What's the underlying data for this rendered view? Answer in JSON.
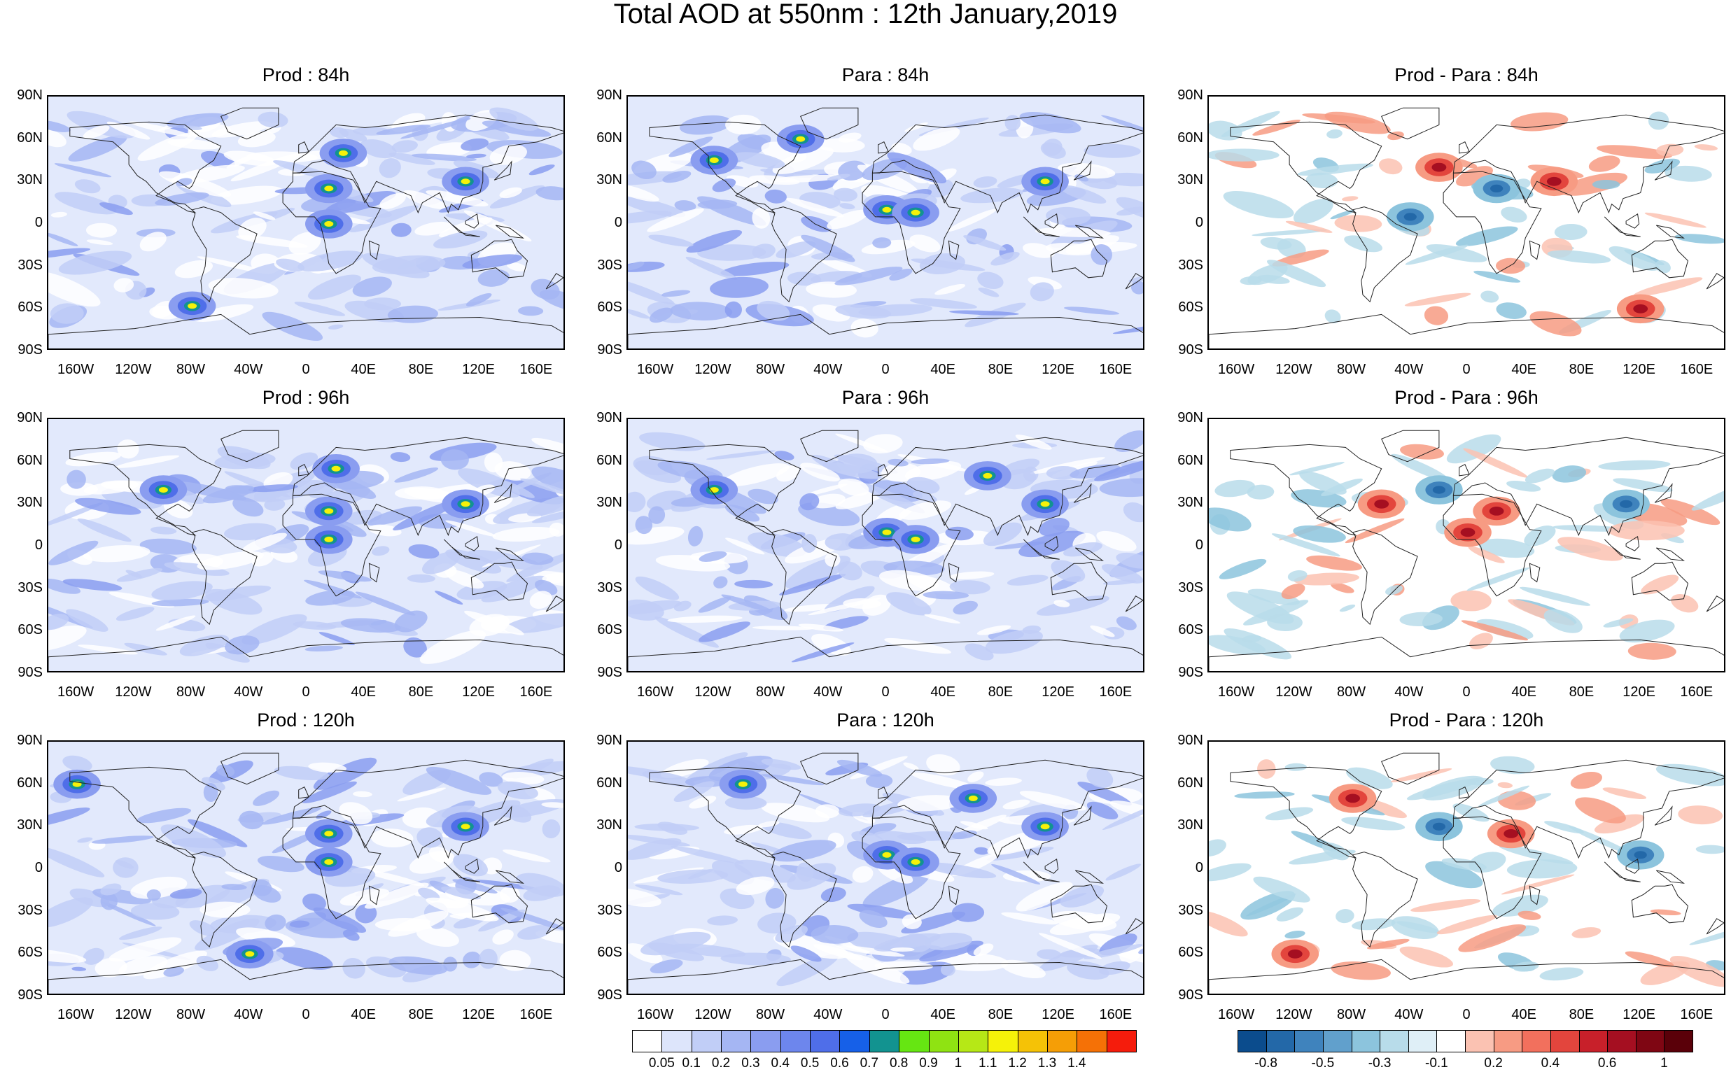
{
  "title": "Total AOD at 550nm : 12th January,2019",
  "panels": [
    {
      "title": "Prod : 84h",
      "kind": "aod",
      "seed": 11,
      "hot": [
        [
          15,
          25
        ],
        [
          15,
          0
        ],
        [
          110,
          30
        ],
        [
          -80,
          -58
        ],
        [
          25,
          50
        ]
      ]
    },
    {
      "title": "Para : 84h",
      "kind": "aod",
      "seed": 23,
      "hot": [
        [
          0,
          10
        ],
        [
          20,
          8
        ],
        [
          110,
          30
        ],
        [
          -60,
          60
        ],
        [
          -120,
          45
        ]
      ]
    },
    {
      "title": "Prod - Para : 84h",
      "kind": "diff",
      "seed": 37,
      "hot": [
        [
          -20,
          40
        ],
        [
          20,
          25
        ],
        [
          60,
          30
        ],
        [
          -40,
          5
        ],
        [
          120,
          -60
        ]
      ]
    },
    {
      "title": "Prod : 96h",
      "kind": "aod",
      "seed": 41,
      "hot": [
        [
          15,
          25
        ],
        [
          15,
          5
        ],
        [
          110,
          30
        ],
        [
          -100,
          40
        ],
        [
          20,
          55
        ]
      ]
    },
    {
      "title": "Para : 96h",
      "kind": "aod",
      "seed": 53,
      "hot": [
        [
          0,
          10
        ],
        [
          20,
          5
        ],
        [
          110,
          30
        ],
        [
          70,
          50
        ],
        [
          -120,
          40
        ]
      ]
    },
    {
      "title": "Prod - Para : 96h",
      "kind": "diff",
      "seed": 67,
      "hot": [
        [
          20,
          25
        ],
        [
          -20,
          40
        ],
        [
          -60,
          30
        ],
        [
          110,
          30
        ],
        [
          0,
          10
        ]
      ]
    },
    {
      "title": "Prod : 120h",
      "kind": "aod",
      "seed": 71,
      "hot": [
        [
          15,
          25
        ],
        [
          15,
          5
        ],
        [
          110,
          30
        ],
        [
          -40,
          -60
        ],
        [
          -160,
          60
        ]
      ]
    },
    {
      "title": "Para : 120h",
      "kind": "aod",
      "seed": 83,
      "hot": [
        [
          0,
          10
        ],
        [
          20,
          5
        ],
        [
          110,
          30
        ],
        [
          60,
          50
        ],
        [
          -100,
          60
        ]
      ]
    },
    {
      "title": "Prod - Para : 120h",
      "kind": "diff",
      "seed": 97,
      "hot": [
        [
          30,
          25
        ],
        [
          -20,
          30
        ],
        [
          -80,
          50
        ],
        [
          120,
          10
        ],
        [
          -120,
          -60
        ]
      ]
    }
  ],
  "lat_labels": [
    "90N",
    "60N",
    "30N",
    "0",
    "30S",
    "60S",
    "90S"
  ],
  "lon_labels": [
    "160W",
    "120W",
    "80W",
    "40W",
    "0",
    "40E",
    "80E",
    "120E",
    "160E"
  ],
  "aod_colorbar": {
    "colors": [
      "#ffffff",
      "#dde5fb",
      "#c1cef7",
      "#a5b6f3",
      "#8a9df0",
      "#6d86ed",
      "#4f6ee9",
      "#1660e8",
      "#129390",
      "#66e612",
      "#8fe312",
      "#b6e816",
      "#f5f209",
      "#f5c206",
      "#f59e06",
      "#f57106",
      "#f51c0c"
    ],
    "labels": [
      "0.05",
      "0.1",
      "0.2",
      "0.3",
      "0.4",
      "0.5",
      "0.6",
      "0.7",
      "0.8",
      "0.9",
      "1",
      "1.1",
      "1.2",
      "1.3",
      "1.4"
    ]
  },
  "diff_colorbar": {
    "colors": [
      "#0b4c8d",
      "#2368a8",
      "#3f83bd",
      "#61a0cc",
      "#8cc4dd",
      "#b8dcea",
      "#dfeff7",
      "#ffffff",
      "#fbc2b2",
      "#f79b83",
      "#f2705d",
      "#e3453d",
      "#c8202a",
      "#a50f21",
      "#7f0613",
      "#5a0009"
    ],
    "labels": [
      "-0.8",
      "-0.5",
      "-0.3",
      "-0.1",
      "0.2",
      "0.4",
      "0.6",
      "1"
    ]
  }
}
